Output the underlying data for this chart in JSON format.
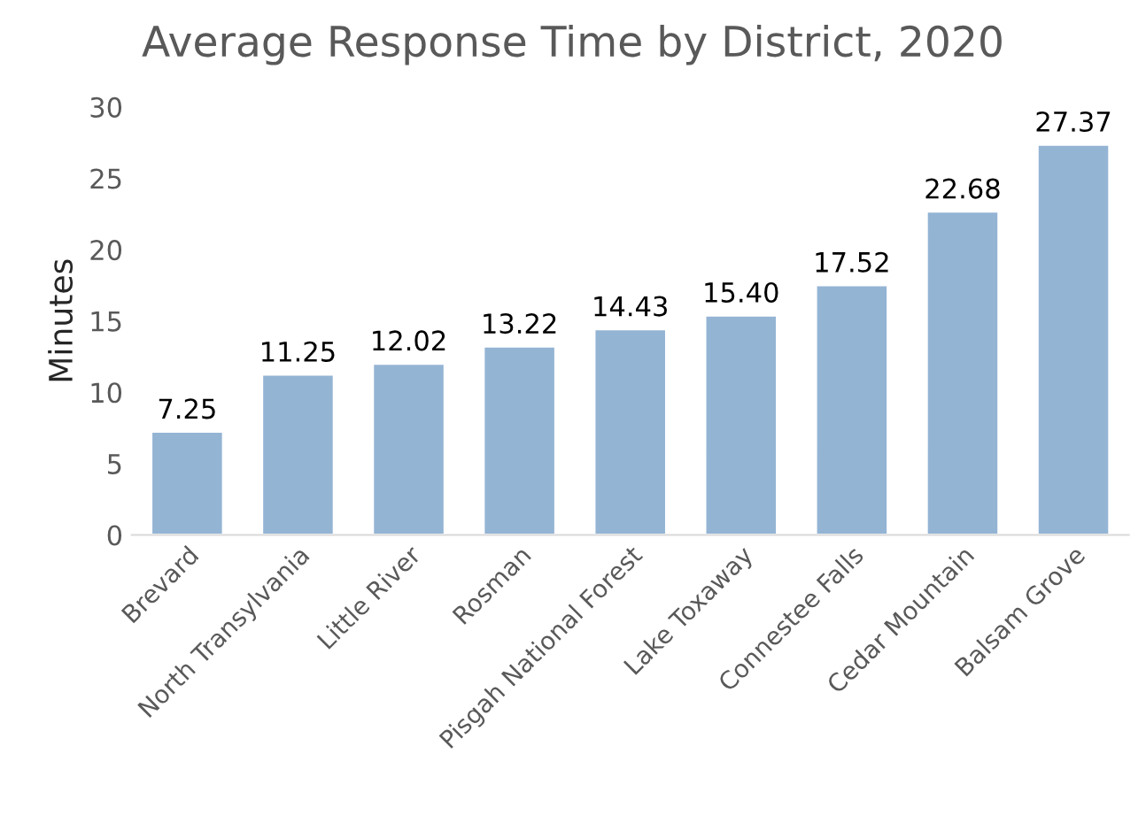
{
  "chart_data": {
    "type": "bar",
    "title": "Average Response Time by District, 2020",
    "ylabel": "Minutes",
    "categories": [
      "Brevard",
      "North Transylvania",
      "Little River",
      "Rosman",
      "Pisgah National Forest",
      "Lake Toxaway",
      "Connestee Falls",
      "Cedar Mountain",
      "Balsam Grove"
    ],
    "values": [
      7.25,
      11.25,
      12.02,
      13.22,
      14.43,
      15.4,
      17.52,
      22.68,
      27.37
    ],
    "value_labels": [
      "7.25",
      "11.25",
      "12.02",
      "13.22",
      "14.43",
      "15.40",
      "17.52",
      "22.68",
      "27.37"
    ],
    "color": "#94b4d4",
    "ylim": [
      0,
      30
    ],
    "yticks": [
      0,
      5,
      10,
      15,
      20,
      25,
      30
    ],
    "grid": false,
    "legend": false
  }
}
